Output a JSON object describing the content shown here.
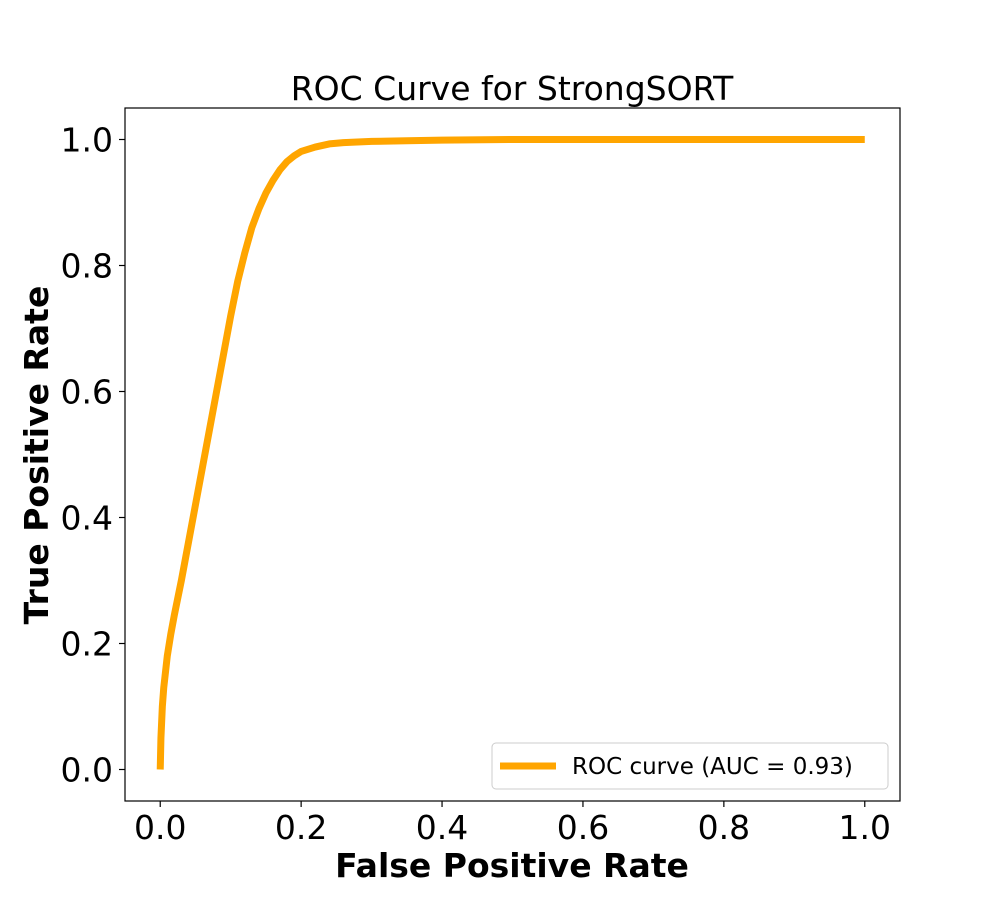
{
  "chart_data": {
    "type": "line",
    "title": "ROC Curve for StrongSORT",
    "xlabel": "False Positive Rate",
    "ylabel": "True Positive Rate",
    "xlim": [
      -0.05,
      1.05
    ],
    "ylim": [
      -0.05,
      1.05
    ],
    "xticks": [
      0.0,
      0.2,
      0.4,
      0.6,
      0.8,
      1.0
    ],
    "yticks": [
      0.0,
      0.2,
      0.4,
      0.6,
      0.8,
      1.0
    ],
    "xtick_labels": [
      "0.0",
      "0.2",
      "0.4",
      "0.6",
      "0.8",
      "1.0"
    ],
    "ytick_labels": [
      "0.0",
      "0.2",
      "0.4",
      "0.6",
      "0.8",
      "1.0"
    ],
    "grid": false,
    "legend_position": "lower-right",
    "series": [
      {
        "name": "ROC curve (AUC = 0.93)",
        "color": "#FFA500",
        "x": [
          0.0,
          0.001,
          0.003,
          0.005,
          0.01,
          0.015,
          0.02,
          0.03,
          0.04,
          0.05,
          0.06,
          0.07,
          0.08,
          0.09,
          0.1,
          0.11,
          0.12,
          0.13,
          0.14,
          0.15,
          0.16,
          0.17,
          0.18,
          0.19,
          0.2,
          0.22,
          0.24,
          0.26,
          0.28,
          0.3,
          0.35,
          0.4,
          0.5,
          0.6,
          0.7,
          0.8,
          0.9,
          1.0
        ],
        "y": [
          0.0,
          0.05,
          0.1,
          0.13,
          0.18,
          0.215,
          0.245,
          0.3,
          0.36,
          0.42,
          0.48,
          0.54,
          0.6,
          0.66,
          0.72,
          0.775,
          0.82,
          0.86,
          0.89,
          0.915,
          0.935,
          0.952,
          0.965,
          0.974,
          0.981,
          0.988,
          0.993,
          0.995,
          0.996,
          0.997,
          0.998,
          0.999,
          1.0,
          1.0,
          1.0,
          1.0,
          1.0,
          1.0
        ]
      }
    ]
  }
}
